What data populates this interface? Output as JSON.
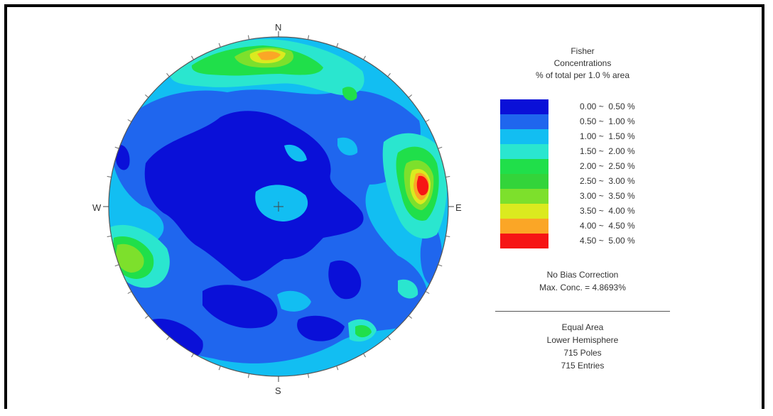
{
  "directions": {
    "north": "N",
    "south": "S",
    "east": "E",
    "west": "W"
  },
  "legend": {
    "title": [
      "Fisher",
      "Concentrations",
      "% of total per 1.0 % area"
    ],
    "bins": [
      {
        "range": "0.00 ~  0.50 %",
        "color": "#0a10d8"
      },
      {
        "range": "0.50 ~  1.00 %",
        "color": "#1f66ee"
      },
      {
        "range": "1.00 ~  1.50 %",
        "color": "#12bef2"
      },
      {
        "range": "1.50 ~  2.00 %",
        "color": "#2ae6cf"
      },
      {
        "range": "2.00 ~  2.50 %",
        "color": "#20df4a"
      },
      {
        "range": "2.50 ~  3.00 %",
        "color": "#33d43a"
      },
      {
        "range": "3.00 ~  3.50 %",
        "color": "#7de02c"
      },
      {
        "range": "3.50 ~  4.00 %",
        "color": "#dbea1f"
      },
      {
        "range": "4.00 ~  4.50 %",
        "color": "#fba626"
      },
      {
        "range": "4.50 ~  5.00 %",
        "color": "#f61515"
      }
    ]
  },
  "stats": {
    "bias": "No Bias Correction",
    "max_conc": "Max. Conc. = 4.8693%"
  },
  "projection": {
    "type": "Equal Area",
    "hemisphere": "Lower Hemisphere",
    "poles": "715 Poles",
    "entries": "715 Entries"
  }
}
